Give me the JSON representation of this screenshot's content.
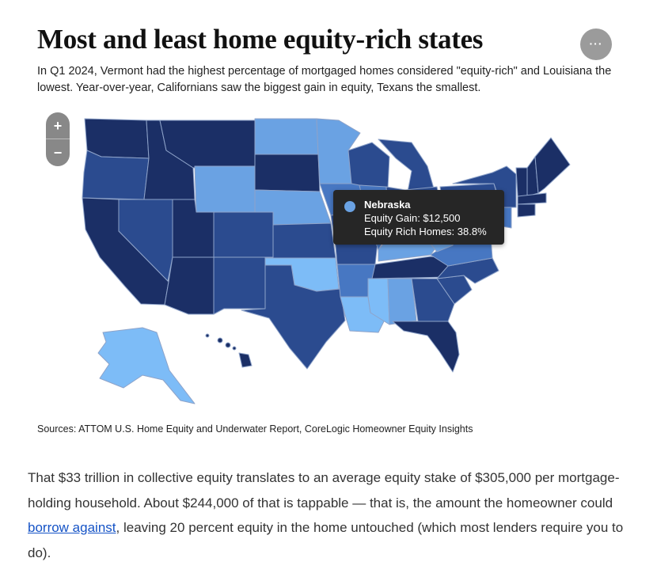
{
  "title": "Most and least home equity-rich states",
  "menu_label": "···",
  "subtitle": "In Q1 2024, Vermont had the highest percentage of mortgaged homes considered \"equity-rich\" and Louisiana the lowest. Year-over-year, Californians saw the biggest gain in equity, Texans the smallest.",
  "zoom": {
    "in_label": "+",
    "out_label": "−"
  },
  "colors": {
    "darkest": "#1b2f66",
    "dark": "#2b4b8f",
    "medium": "#4777c2",
    "light": "#6aa2e3",
    "lightest": "#7dbcf7",
    "tooltip_dot": "#6aa2e3"
  },
  "tooltip": {
    "state": "Nebraska",
    "equity_gain_line": "Equity Gain: $12,500",
    "equity_rich_line": "Equity Rich Homes: 38.8%"
  },
  "sources": "Sources: ATTOM U.S. Home Equity and Underwater Report, CoreLogic Homeowner Equity Insights",
  "body": {
    "before_link": "That $33 trillion in collective equity translates to an average equity stake of $305,000 per mortgage-holding household. About $244,000 of that is tappable — that is, the amount the homeowner could ",
    "link_text": "borrow against",
    "after_link": ", leaving 20 percent equity in the home untouched (which most lenders require you to do)."
  }
}
